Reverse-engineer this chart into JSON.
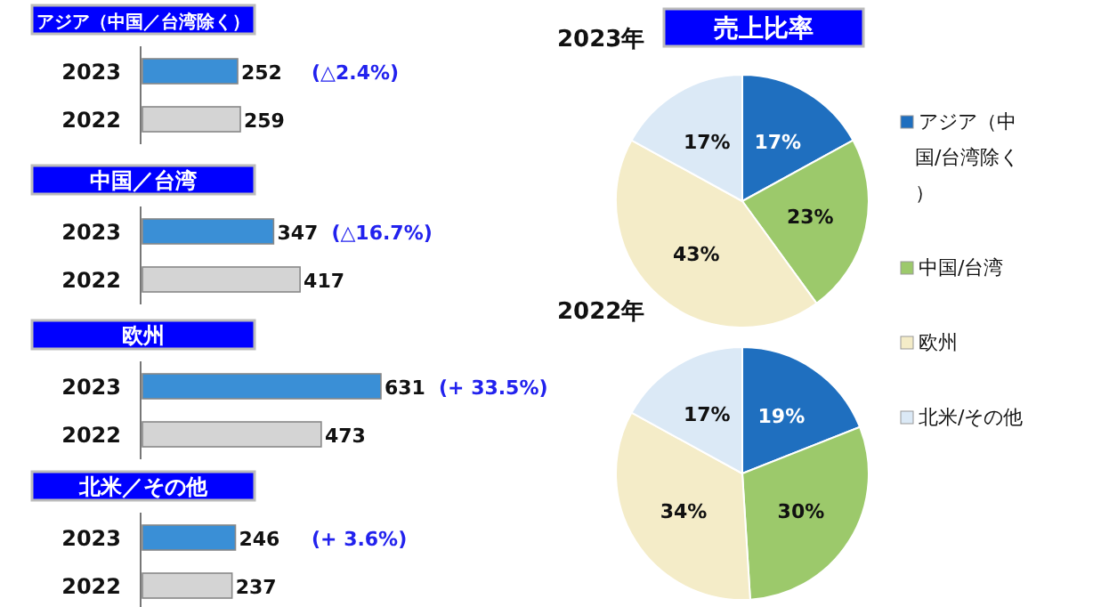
{
  "chart_data": [
    {
      "type": "bar",
      "orientation": "horizontal",
      "title": "アジア（中国／台湾除く）",
      "categories": [
        "2023",
        "2022"
      ],
      "values": [
        252,
        259
      ],
      "colors": [
        "#3a8fd6",
        "#d4d4d4"
      ],
      "data_labels": true,
      "annotations": [
        "(△2.4%)"
      ]
    },
    {
      "type": "bar",
      "orientation": "horizontal",
      "title": "中国／台湾",
      "categories": [
        "2023",
        "2022"
      ],
      "values": [
        347,
        417
      ],
      "colors": [
        "#3a8fd6",
        "#d4d4d4"
      ],
      "data_labels": true,
      "annotations": [
        "(△16.7%)"
      ]
    },
    {
      "type": "bar",
      "orientation": "horizontal",
      "title": "欧州",
      "categories": [
        "2023",
        "2022"
      ],
      "values": [
        631,
        473
      ],
      "colors": [
        "#3a8fd6",
        "#d4d4d4"
      ],
      "data_labels": true,
      "annotations": [
        "(+ 33.5%)"
      ]
    },
    {
      "type": "bar",
      "orientation": "horizontal",
      "title": "北米／その他",
      "categories": [
        "2023",
        "2022"
      ],
      "values": [
        246,
        237
      ],
      "colors": [
        "#3a8fd6",
        "#d4d4d4"
      ],
      "data_labels": true,
      "annotations": [
        "(+ 3.6%)"
      ]
    },
    {
      "type": "pie",
      "title": "売上比率",
      "subtitle": "2023年",
      "categories": [
        "アジア（中国/台湾除く）",
        "中国/台湾",
        "欧州",
        "北米/その他"
      ],
      "values": [
        17,
        23,
        43,
        17
      ],
      "colors": [
        "#1f6fbf",
        "#9cc96b",
        "#f4ecc8",
        "#dbe9f6"
      ],
      "value_labels": [
        "17%",
        "23%",
        "43%",
        "17%"
      ],
      "legend": "right"
    },
    {
      "type": "pie",
      "title": "2022年",
      "categories": [
        null,
        null,
        null,
        null
      ],
      "values": [
        19,
        30,
        34,
        17
      ],
      "colors": [
        "#1f6fbf",
        "#9cc96b",
        "#f4ecc8",
        "#dbe9f6"
      ],
      "value_labels": [
        "19%",
        "30%",
        "34%",
        "17%"
      ]
    }
  ]
}
